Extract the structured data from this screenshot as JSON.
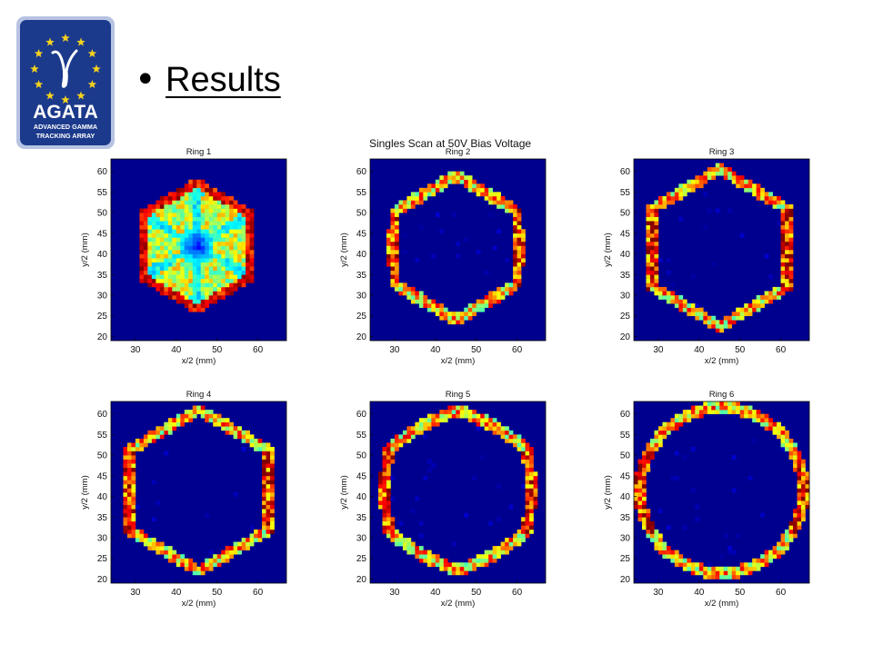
{
  "slide": {
    "bullet": "•",
    "heading": "Results"
  },
  "logo": {
    "name": "agata-logo",
    "text_main": "AGATA",
    "text_line1": "ADVANCED GAMMA",
    "text_line2": "TRACKING ARRAY",
    "colors": {
      "background": "#1c3a8c",
      "stars": "#f4d21e",
      "frame": "#b7c3e3"
    }
  },
  "chart_data": {
    "type": "heatmap",
    "title": "Singles Scan at 50V Bias Voltage",
    "colormap": "jet",
    "panels": [
      {
        "title": "Ring  1",
        "xlabel": "x/2 (mm)",
        "ylabel": "y/2 (mm)",
        "xlim": [
          24,
          67
        ],
        "ylim": [
          19,
          63
        ],
        "xticks": [
          30,
          40,
          50,
          60
        ],
        "yticks": [
          20,
          25,
          30,
          35,
          40,
          45,
          50,
          55,
          60
        ],
        "shape": "filled-hexagon",
        "center": [
          45,
          42
        ],
        "radius": 16.5
      },
      {
        "title": "Ring  2",
        "xlabel": "x/2 (mm)",
        "ylabel": "y/2 (mm)",
        "xlim": [
          24,
          67
        ],
        "ylim": [
          19,
          63
        ],
        "xticks": [
          30,
          40,
          50,
          60
        ],
        "yticks": [
          20,
          25,
          30,
          35,
          40,
          45,
          50,
          55,
          60
        ],
        "shape": "hexagon-ring",
        "center": [
          45,
          41.5
        ],
        "radius": 17.5
      },
      {
        "title": "Ring  3",
        "xlabel": "x/2 (mm)",
        "ylabel": "y/2 (mm)",
        "xlim": [
          24,
          67
        ],
        "ylim": [
          19,
          63
        ],
        "xticks": [
          30,
          40,
          50,
          60
        ],
        "yticks": [
          20,
          25,
          30,
          35,
          40,
          45,
          50,
          55,
          60
        ],
        "shape": "hexagon-ring",
        "center": [
          45,
          41.5
        ],
        "radius": 19
      },
      {
        "title": "Ring  4",
        "xlabel": "x/2 (mm)",
        "ylabel": "y/2 (mm)",
        "xlim": [
          24,
          67
        ],
        "ylim": [
          19,
          63
        ],
        "xticks": [
          30,
          40,
          50,
          60
        ],
        "yticks": [
          20,
          25,
          30,
          35,
          40,
          45,
          50,
          55,
          60
        ],
        "shape": "hexagon-ring",
        "center": [
          45.5,
          41.5
        ],
        "radius": 19.5
      },
      {
        "title": "Ring  5",
        "xlabel": "x/2 (mm)",
        "ylabel": "y/2 (mm)",
        "xlim": [
          24,
          67
        ],
        "ylim": [
          19,
          63
        ],
        "xticks": [
          30,
          40,
          50,
          60
        ],
        "yticks": [
          20,
          25,
          30,
          35,
          40,
          45,
          50,
          55,
          60
        ],
        "shape": "rounded-hexagon-ring",
        "center": [
          45.5,
          41.5
        ],
        "radius": 20
      },
      {
        "title": "Ring  6",
        "xlabel": "x/2 (mm)",
        "ylabel": "y/2 (mm)",
        "xlim": [
          24,
          67
        ],
        "ylim": [
          19,
          63
        ],
        "xticks": [
          30,
          40,
          50,
          60
        ],
        "yticks": [
          20,
          25,
          30,
          35,
          40,
          45,
          50,
          55,
          60
        ],
        "shape": "circle-ring",
        "center": [
          45.5,
          41.5
        ],
        "radius": 20
      }
    ]
  }
}
